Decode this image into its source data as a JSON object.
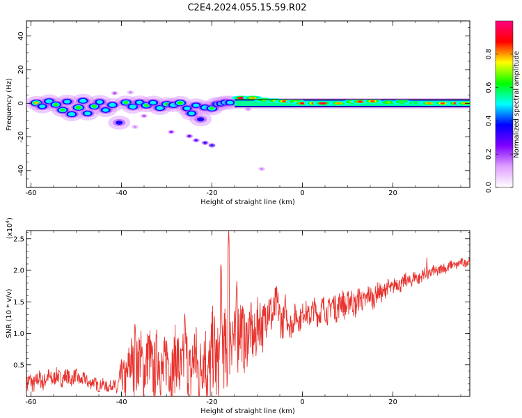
{
  "title": "C2E4.2024.055.15.59.R02",
  "chart_data": [
    {
      "type": "heatmap",
      "xlabel": "Height of straight line (km)",
      "ylabel": "Frequency (Hz)",
      "xlim": [
        -61,
        37
      ],
      "ylim": [
        -50,
        49
      ],
      "xticks": [
        -60,
        -40,
        -20,
        0,
        20
      ],
      "yticks": [
        -40,
        -20,
        0,
        20,
        40
      ],
      "colorbar": {
        "label": "Normalized spectral amplitude",
        "range": [
          0,
          1
        ],
        "ticks": [
          "0.0",
          "0.2",
          "0.4",
          "0.6",
          "0.8"
        ],
        "colors": [
          "#ffffff",
          "#e0a0ff",
          "#8000ff",
          "#0000ff",
          "#00ffff",
          "#00ff00",
          "#ffff00",
          "#ff0000",
          "#ff0080"
        ]
      },
      "band": {
        "x_start": -15,
        "x_end": 37,
        "f_top": 1.8,
        "f_bottom": -1.8
      },
      "blobs": [
        {
          "x": -58.8,
          "f": 0.2,
          "a": 0.7
        },
        {
          "x": -57.5,
          "f": -1.8,
          "a": 0.5
        },
        {
          "x": -56,
          "f": 1.2,
          "a": 0.55
        },
        {
          "x": -54.5,
          "f": -0.8,
          "a": 0.6
        },
        {
          "x": -53,
          "f": -4,
          "a": 0.6
        },
        {
          "x": -52,
          "f": 1,
          "a": 0.5
        },
        {
          "x": -51,
          "f": -6.5,
          "a": 0.55
        },
        {
          "x": -49.5,
          "f": -2.5,
          "a": 0.65
        },
        {
          "x": -48.5,
          "f": 1.5,
          "a": 0.55
        },
        {
          "x": -47.5,
          "f": -6,
          "a": 0.5
        },
        {
          "x": -46,
          "f": -1.8,
          "a": 0.6
        },
        {
          "x": -44.8,
          "f": 0.8,
          "a": 0.5
        },
        {
          "x": -43.5,
          "f": -4,
          "a": 0.5
        },
        {
          "x": -42,
          "f": -1,
          "a": 0.55
        },
        {
          "x": -40.5,
          "f": -11.5,
          "a": 0.35
        },
        {
          "x": -39,
          "f": 0.5,
          "a": 0.6
        },
        {
          "x": -37.5,
          "f": -2,
          "a": 0.55
        },
        {
          "x": -36,
          "f": 0.5,
          "a": 0.5
        },
        {
          "x": -34.5,
          "f": -1.2,
          "a": 0.6
        },
        {
          "x": -33,
          "f": 0.4,
          "a": 0.5
        },
        {
          "x": -31.5,
          "f": -2.8,
          "a": 0.55
        },
        {
          "x": -30,
          "f": -0.5,
          "a": 0.6
        },
        {
          "x": -28.5,
          "f": -1,
          "a": 0.55
        },
        {
          "x": -27,
          "f": 0.2,
          "a": 0.65
        },
        {
          "x": -25.5,
          "f": -3,
          "a": 0.5
        },
        {
          "x": -24.5,
          "f": -6,
          "a": 0.5
        },
        {
          "x": -23.5,
          "f": -1.2,
          "a": 0.5
        },
        {
          "x": -22.5,
          "f": -9.5,
          "a": 0.35
        },
        {
          "x": -21.5,
          "f": -2.5,
          "a": 0.55
        },
        {
          "x": -20,
          "f": -3,
          "a": 0.6
        },
        {
          "x": -19,
          "f": -0.5,
          "a": 0.45
        },
        {
          "x": -18,
          "f": -0.2,
          "a": 0.5
        },
        {
          "x": -17,
          "f": 0.5,
          "a": 0.55
        },
        {
          "x": -16,
          "f": 0.4,
          "a": 0.5
        }
      ],
      "sparse_points": [
        {
          "x": -29,
          "f": -17,
          "a": 0.25
        },
        {
          "x": -25,
          "f": -19.5,
          "a": 0.3
        },
        {
          "x": -23.5,
          "f": -22,
          "a": 0.3
        },
        {
          "x": -21.5,
          "f": -23.5,
          "a": 0.35
        },
        {
          "x": -20,
          "f": -25,
          "a": 0.4
        },
        {
          "x": -41.5,
          "f": 6,
          "a": 0.2
        },
        {
          "x": -38,
          "f": 6.5,
          "a": 0.15
        },
        {
          "x": -35,
          "f": -7.5,
          "a": 0.2
        },
        {
          "x": -9,
          "f": -39,
          "a": 0.15
        },
        {
          "x": -37,
          "f": -14,
          "a": 0.15
        },
        {
          "x": -12,
          "f": -3.5,
          "a": 0.15
        }
      ],
      "band_hotspots": [
        {
          "x": -13.5,
          "f": 3.2,
          "a": 0.95
        },
        {
          "x": -11,
          "f": 3.2,
          "a": 0.8
        },
        {
          "x": -8.5,
          "f": 2,
          "a": 0.7
        },
        {
          "x": -6,
          "f": 1.6,
          "a": 0.75
        },
        {
          "x": -4,
          "f": 1.2,
          "a": 0.85
        },
        {
          "x": -1.5,
          "f": 1,
          "a": 0.7
        },
        {
          "x": 0,
          "f": 0,
          "a": 0.9
        },
        {
          "x": 2.5,
          "f": 0,
          "a": 0.85
        },
        {
          "x": 4.5,
          "f": 0,
          "a": 0.95
        },
        {
          "x": 8,
          "f": 0,
          "a": 0.8
        },
        {
          "x": 11,
          "f": 0.8,
          "a": 0.75
        },
        {
          "x": 12.8,
          "f": 1,
          "a": 0.9
        },
        {
          "x": 15.5,
          "f": 1.2,
          "a": 0.85
        },
        {
          "x": 19,
          "f": 0.5,
          "a": 0.7
        },
        {
          "x": 22,
          "f": 0.8,
          "a": 0.65
        },
        {
          "x": 25,
          "f": 0.2,
          "a": 0.6
        },
        {
          "x": 28,
          "f": 0,
          "a": 0.8
        },
        {
          "x": 31,
          "f": 0,
          "a": 0.85
        },
        {
          "x": 34,
          "f": 0,
          "a": 0.9
        },
        {
          "x": 36,
          "f": 0,
          "a": 0.8
        }
      ]
    },
    {
      "type": "line",
      "xlabel": "Height of straight line (km)",
      "ylabel": "SNR (10 * v/v)",
      "yscale_note": "(x10^4)",
      "yscale_prefix": "(x10",
      "yscale_exp": "4",
      "xlim": [
        -61,
        37
      ],
      "ylim": [
        0,
        2.63
      ],
      "xticks": [
        -60,
        -40,
        -20,
        0,
        20
      ],
      "yticks": [
        "0.5",
        "1.0",
        "1.5",
        "2.0",
        "2.5"
      ],
      "series": [
        {
          "color": "#e8332e",
          "trend": {
            "x": [
              -61,
              -55,
              -50,
              -45,
              -41,
              -38,
              -35,
              -32,
              -28,
              -24,
              -20,
              -18,
              -16,
              -14,
              -12,
              -10,
              -8,
              -6,
              -4,
              -2,
              0,
              4,
              8,
              12,
              16,
              20,
              24,
              28,
              32,
              37
            ],
            "y": [
              0.2,
              0.3,
              0.3,
              0.18,
              0.15,
              0.45,
              0.55,
              0.5,
              0.5,
              0.5,
              0.55,
              0.7,
              0.85,
              1.0,
              0.95,
              1.05,
              1.3,
              1.4,
              1.2,
              1.2,
              1.3,
              1.35,
              1.45,
              1.5,
              1.6,
              1.75,
              1.85,
              1.95,
              2.05,
              2.15
            ]
          },
          "amplitude": {
            "x": [
              -61,
              -42,
              -38,
              -32,
              -26,
              -22,
              -18,
              -16,
              -12,
              -8,
              -4,
              0,
              10,
              20,
              37
            ],
            "y": [
              0.15,
              0.08,
              0.45,
              0.5,
              0.55,
              0.6,
              0.75,
              0.7,
              0.45,
              0.4,
              0.25,
              0.18,
              0.22,
              0.12,
              0.06
            ]
          },
          "peaks": [
            {
              "x": -16.3,
              "y": 2.63
            },
            {
              "x": -18,
              "y": 2.15
            },
            {
              "x": -14.5,
              "y": 1.85
            },
            {
              "x": -26,
              "y": 1.35
            },
            {
              "x": -37,
              "y": 1.2
            },
            {
              "x": -3.8,
              "y": 1.65
            },
            {
              "x": 27.5,
              "y": 2.2
            },
            {
              "x": 33.5,
              "y": 2.2
            }
          ]
        }
      ]
    }
  ]
}
